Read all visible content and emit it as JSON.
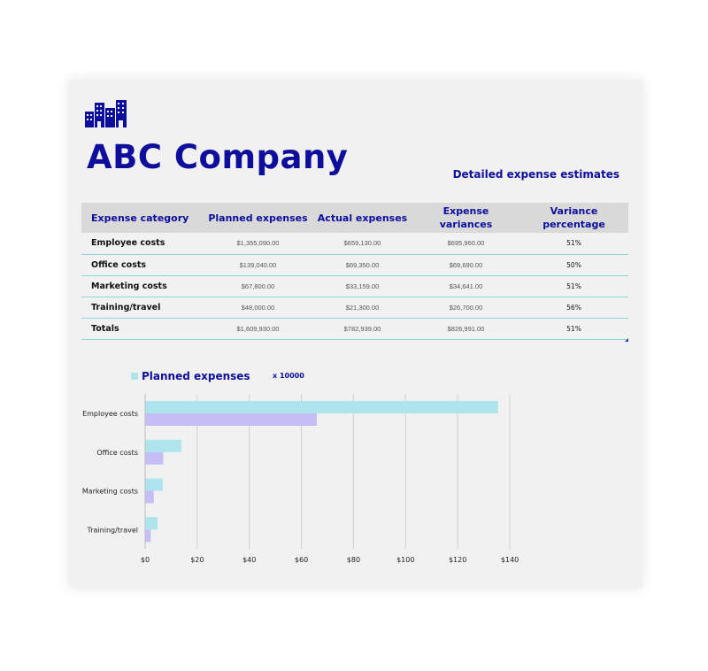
{
  "header": {
    "company": "ABC Company",
    "subtitle": "Detailed expense estimates",
    "logo_icon": "buildings-icon"
  },
  "table": {
    "columns": [
      "Expense category",
      "Planned expenses",
      "Actual expenses",
      "Expense variances",
      "Variance percentage"
    ],
    "rows": [
      {
        "category": "Employee costs",
        "planned": "$1,355,090.00",
        "actual": "$659,130.00",
        "variance": "$695,960.00",
        "pct": "51%"
      },
      {
        "category": "Office costs",
        "planned": "$139,040.00",
        "actual": "$69,350.00",
        "variance": "$69,690.00",
        "pct": "50%"
      },
      {
        "category": "Marketing costs",
        "planned": "$67,800.00",
        "actual": "$33,159.00",
        "variance": "$34,641.00",
        "pct": "51%"
      },
      {
        "category": "Training/travel",
        "planned": "$48,000.00",
        "actual": "$21,300.00",
        "variance": "$26,700.00",
        "pct": "56%"
      },
      {
        "category": "Totals",
        "planned": "$1,609,930.00",
        "actual": "$782,939.00",
        "variance": "$826,991.00",
        "pct": "51%"
      }
    ]
  },
  "chart_data": {
    "type": "bar",
    "orientation": "horizontal",
    "categories": [
      "Employee costs",
      "Office costs",
      "Marketing costs",
      "Training/travel"
    ],
    "series": [
      {
        "name": "Planned expenses",
        "values": [
          135.509,
          13.904,
          6.78,
          4.8
        ],
        "color": "#aee5ec"
      },
      {
        "values": [
          65.913,
          6.935,
          3.3159,
          2.13
        ],
        "color": "#c5bdf5"
      }
    ],
    "scale_note": "x 10000",
    "xlim": [
      0,
      140
    ],
    "xticks": [
      "$0",
      "$20",
      "$40",
      "$60",
      "$80",
      "$100",
      "$120",
      "$140"
    ],
    "tick_values": [
      0,
      20,
      40,
      60,
      80,
      100,
      120,
      140
    ],
    "grid": true,
    "legend": "top-left"
  },
  "colors": {
    "brand": "#0e0e9c",
    "header_bg": "#d9d9d9",
    "row_border": "#8fd3df"
  }
}
